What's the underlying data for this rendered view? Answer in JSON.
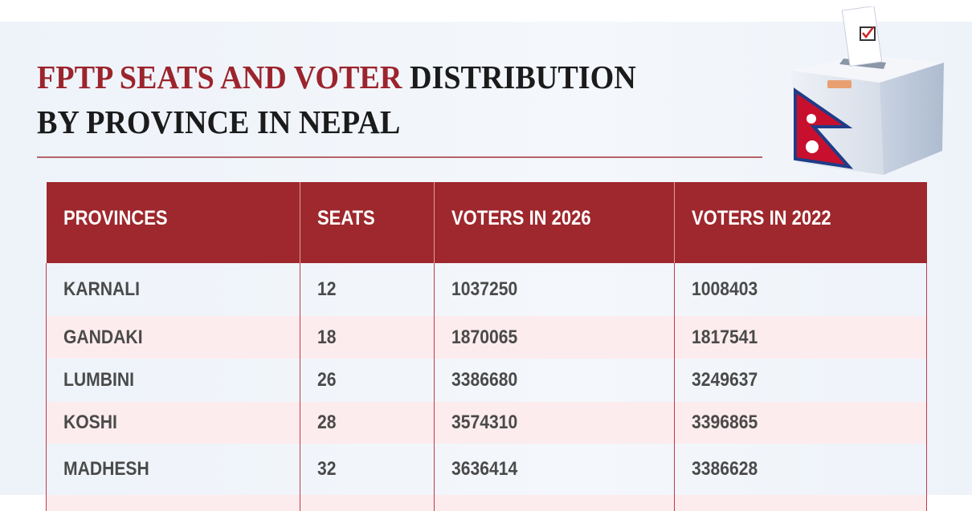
{
  "title": {
    "highlight": "FPTP SEATS AND VOTER",
    "rest_line1": " DISTRIBUTION",
    "line2": "BY PROVINCE IN NEPAL"
  },
  "colors": {
    "accent": "#9e282d",
    "row_alt": "#fdecee",
    "background": "#eef3fa"
  },
  "illustration": "ballot-box-with-nepal-flag",
  "table": {
    "headers": [
      "PROVINCES",
      "SEATS",
      "VOTERS IN 2026",
      "VOTERS IN 2022"
    ],
    "rows": [
      [
        "KARNALI",
        "12",
        "1037250",
        "1008403"
      ],
      [
        "GANDAKI",
        "18",
        "1870065",
        "1817541"
      ],
      [
        "LUMBINI",
        "26",
        "3386680",
        "3249637"
      ],
      [
        "KOSHI",
        "28",
        "3574310",
        "3396865"
      ],
      [
        "MADHESH",
        "32",
        "3636414",
        "3386628"
      ]
    ]
  }
}
